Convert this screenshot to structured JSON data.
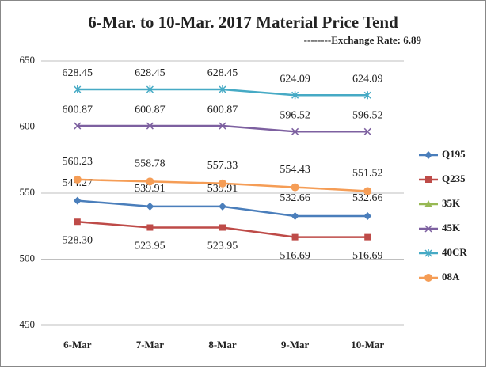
{
  "chart_data": {
    "type": "line",
    "title": "6-Mar. to 10-Mar. 2017 Material Price Tend",
    "subtitle": "--------Exchange Rate: 6.89",
    "categories": [
      "6-Mar",
      "7-Mar",
      "8-Mar",
      "9-Mar",
      "10-Mar"
    ],
    "ylim": [
      450,
      650
    ],
    "yticks": [
      450,
      500,
      550,
      600,
      650
    ],
    "grid": true,
    "legend": "right",
    "series": [
      {
        "name": "Q195",
        "color": "#4a7ebb",
        "marker": "diamond",
        "values": [
          544.27,
          539.91,
          539.91,
          532.66,
          532.66
        ],
        "value_labels": [
          "544.27",
          "539.91",
          "539.91",
          "532.66",
          "532.66"
        ]
      },
      {
        "name": "Q235",
        "color": "#be4b48",
        "marker": "square",
        "values": [
          528.3,
          523.95,
          523.95,
          516.69,
          516.69
        ],
        "value_labels": [
          "528.30",
          "523.95",
          "523.95",
          "516.69",
          "516.69"
        ]
      },
      {
        "name": "35K",
        "color": "#98b954",
        "marker": "triangle",
        "values": [
          null,
          null,
          null,
          null,
          null
        ]
      },
      {
        "name": "45K",
        "color": "#7d60a0",
        "marker": "x",
        "values": [
          600.87,
          600.87,
          600.87,
          596.52,
          596.52
        ],
        "value_labels": [
          "600.87",
          "600.87",
          "600.87",
          "596.52",
          "596.52"
        ]
      },
      {
        "name": "40CR",
        "color": "#46aac5",
        "marker": "star",
        "values": [
          628.45,
          628.45,
          628.45,
          624.09,
          624.09
        ],
        "value_labels": [
          "628.45",
          "628.45",
          "628.45",
          "624.09",
          "624.09"
        ]
      },
      {
        "name": "08A",
        "color": "#f59d56",
        "marker": "circle",
        "values": [
          560.23,
          558.78,
          557.33,
          554.43,
          551.52
        ],
        "value_labels": [
          "560.23",
          "558.78",
          "557.33",
          "554.43",
          "551.52"
        ]
      }
    ]
  }
}
